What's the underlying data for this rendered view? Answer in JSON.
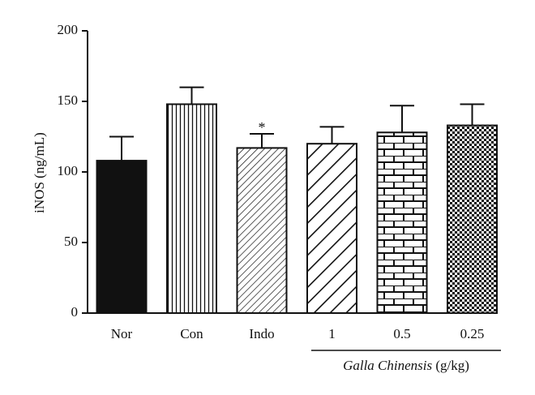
{
  "chart_data": {
    "type": "bar",
    "title": "",
    "xlabel": "",
    "ylabel": "iNOS (ng/mL)",
    "ylim": [
      0,
      200
    ],
    "yticks": [
      0,
      50,
      100,
      150,
      200
    ],
    "grid": false,
    "legend": "none",
    "categories": [
      "Nor",
      "Con",
      "Indo",
      "1",
      "0.5",
      "0.25"
    ],
    "values": [
      108,
      148,
      117,
      120,
      128,
      133
    ],
    "error_bars": [
      17,
      12,
      10,
      12,
      19,
      15
    ],
    "bar_patterns": [
      "solid-black",
      "vertical-lines",
      "diagonal-thin",
      "diagonal-thick",
      "brick",
      "checker"
    ],
    "annotations": [
      {
        "category": "Indo",
        "text": "*"
      }
    ],
    "group_label": {
      "prefix": "Galla Chinensis",
      "suffix": " (g/kg)",
      "spans": [
        "1",
        "0.5",
        "0.25"
      ]
    },
    "colors": {
      "ink": "#111111",
      "fill": "#ffffff"
    }
  }
}
